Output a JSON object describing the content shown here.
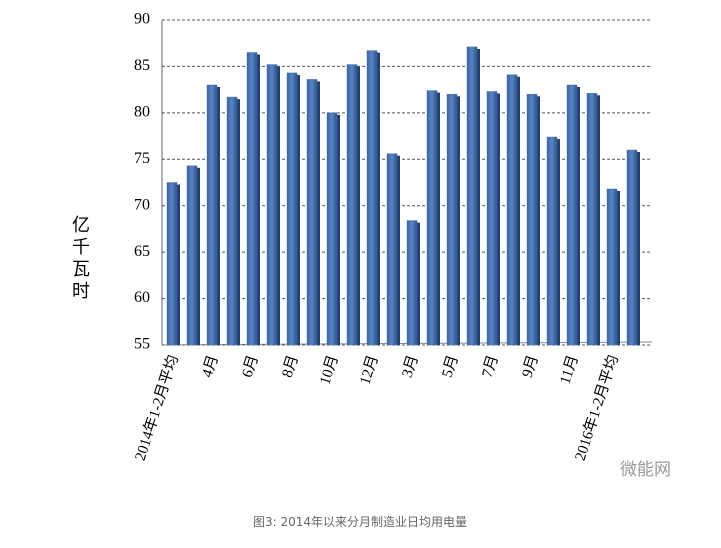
{
  "chart_data": {
    "type": "bar",
    "title": "图3: 2014年以来分月制造业日均用电量",
    "y_label": "亿千瓦时",
    "watermark": "微能网",
    "categories": [
      "2014年1-2月平均",
      null,
      "4月",
      null,
      "6月",
      null,
      "8月",
      null,
      "10月",
      null,
      "12月",
      null,
      "3月",
      null,
      "5月",
      null,
      "7月",
      null,
      "9月",
      null,
      "11月",
      null,
      "2016年1-2月平均",
      null
    ],
    "values": [
      72.5,
      74.3,
      83,
      81.7,
      86.5,
      85.2,
      84.3,
      83.6,
      80,
      85.2,
      86.7,
      75.6,
      68.4,
      82.4,
      82,
      87.1,
      82.3,
      84.1,
      82,
      77.4,
      83,
      82.1,
      71.8,
      76
    ],
    "color": "#4a74b0",
    "ylim": [
      55,
      90
    ],
    "yticks": [
      55,
      60,
      65,
      70,
      75,
      80,
      85,
      90
    ],
    "grid": true
  }
}
